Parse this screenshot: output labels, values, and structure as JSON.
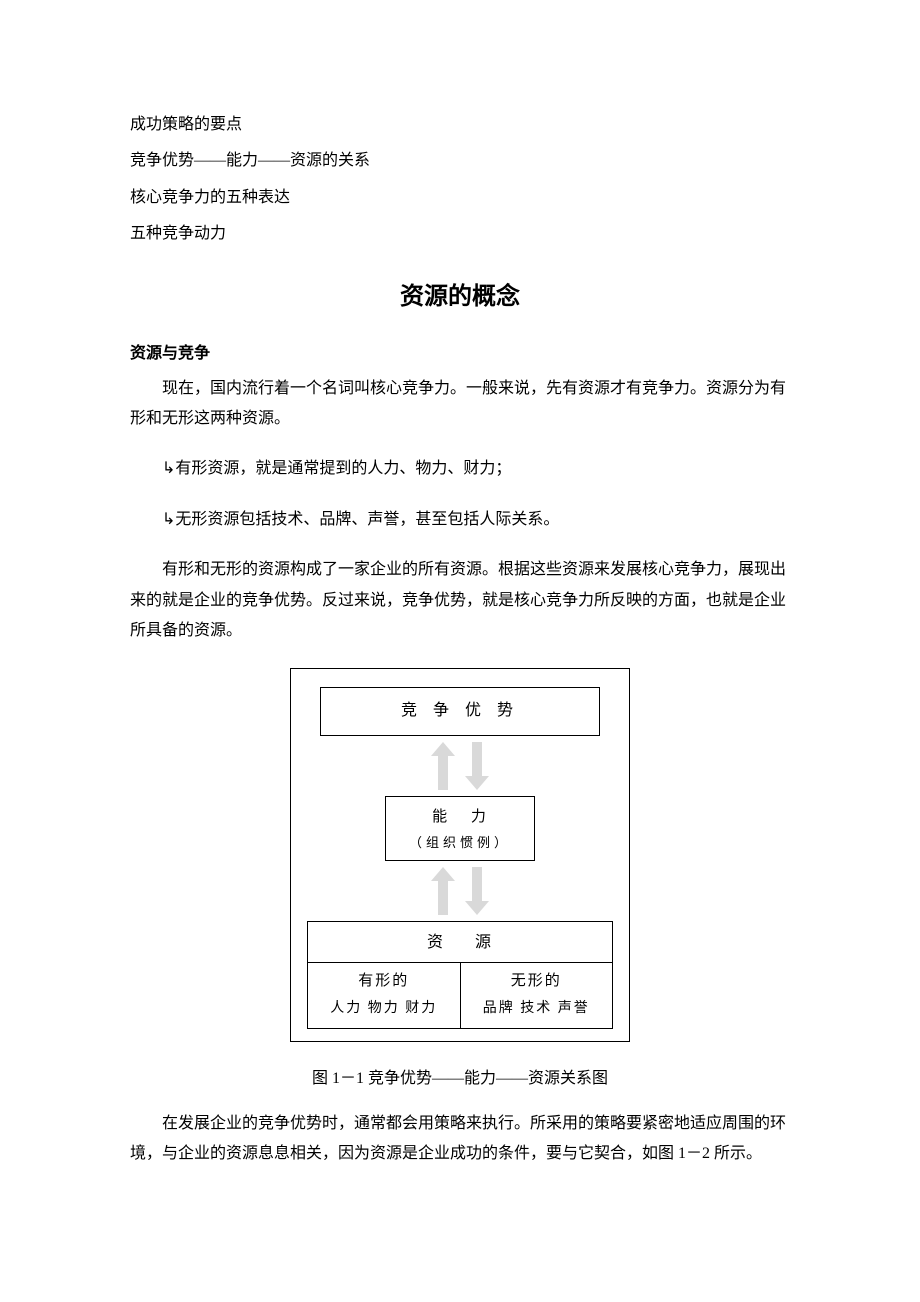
{
  "toc": [
    "成功策略的要点",
    "竞争优势——能力——资源的关系",
    "核心竞争力的五种表达",
    "五种竞争动力"
  ],
  "title": "资源的概念",
  "subhead": "资源与竞争",
  "para1": "现在，国内流行着一个名词叫核心竞争力。一般来说，先有资源才有竞争力。资源分为有形和无形这两种资源。",
  "bullet1": "↳有形资源，就是通常提到的人力、物力、财力；",
  "bullet2": "↳无形资源包括技术、品牌、声誉，甚至包括人际关系。",
  "para2": "有形和无形的资源构成了一家企业的所有资源。根据这些资源来发展核心竞争力，展现出来的就是企业的竞争优势。反过来说，竞争优势，就是核心竞争力所反映的方面，也就是企业所具备的资源。",
  "diagram": {
    "type": "flowchart",
    "background_color": "#ffffff",
    "border_color": "#000000",
    "arrow_color": "#d9d9d9",
    "top": {
      "label": "竞 争 优 势"
    },
    "mid": {
      "line1": "能  力",
      "line2": "（组织惯例）"
    },
    "bottom": {
      "head": "资  源",
      "left": {
        "header": "有形的",
        "items": "人力  物力  财力"
      },
      "right": {
        "header": "无形的",
        "items": "品牌  技术  声誉"
      }
    }
  },
  "caption": "图 1－1  竞争优势——能力——资源关系图",
  "para3": "在发展企业的竞争优势时，通常都会用策略来执行。所采用的策略要紧密地适应周围的环境，与企业的资源息息相关，因为资源是企业成功的条件，要与它契合，如图 1－2 所示。"
}
